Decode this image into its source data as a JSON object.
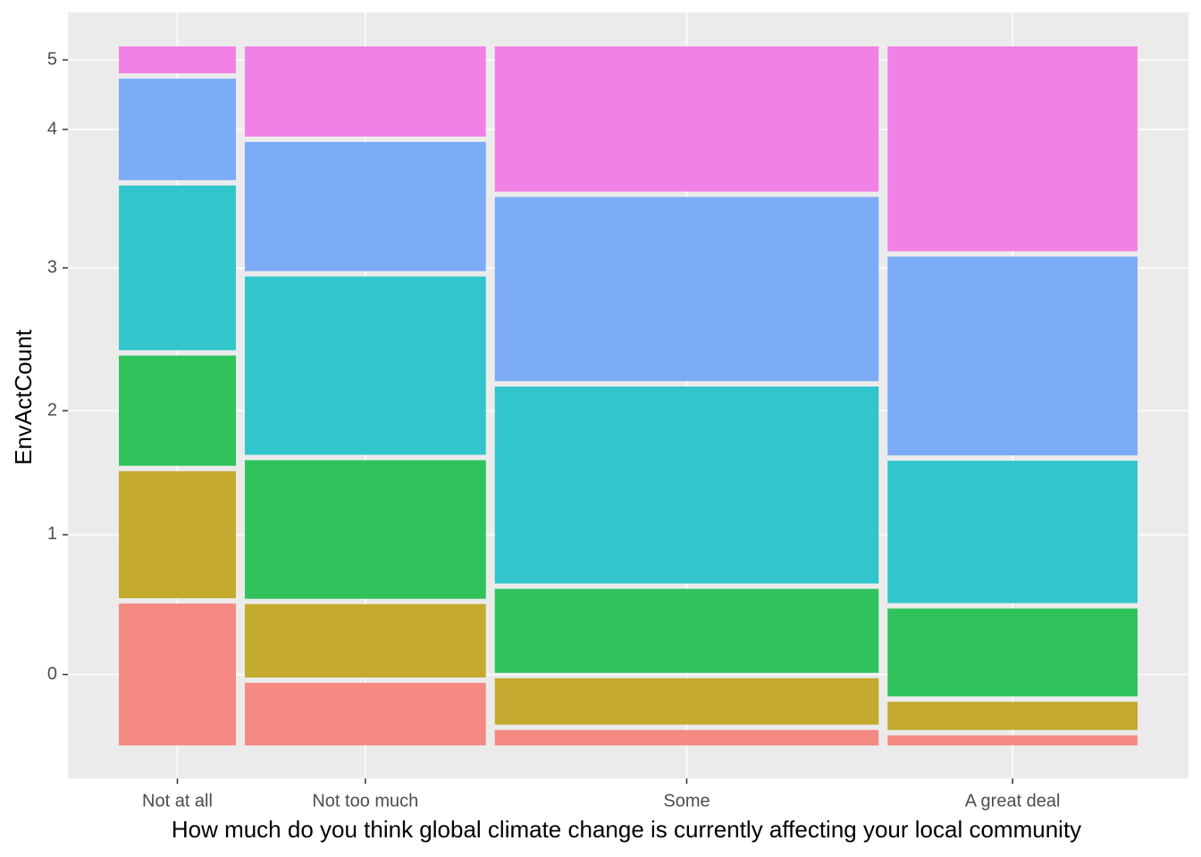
{
  "chart_data": {
    "type": "mosaic",
    "x_label": "How much do you think global climate change is currently affecting your local community",
    "y_label": "EnvActCount",
    "categories": [
      "Not at all",
      "Not too much",
      "Some",
      "A great deal"
    ],
    "widths": [
      0.118,
      0.243,
      0.387,
      0.252
    ],
    "series": [
      {
        "name": "0",
        "color": "#f58a83",
        "values": [
          0.211,
          0.093,
          0.023,
          0.015
        ]
      },
      {
        "name": "1",
        "color": "#c4aa2e",
        "values": [
          0.189,
          0.109,
          0.069,
          0.042
        ]
      },
      {
        "name": "2",
        "color": "#30c35c",
        "values": [
          0.164,
          0.206,
          0.125,
          0.131
        ]
      },
      {
        "name": "3",
        "color": "#32c6cc",
        "values": [
          0.245,
          0.265,
          0.293,
          0.212
        ]
      },
      {
        "name": "4",
        "color": "#7cabf8",
        "values": [
          0.151,
          0.192,
          0.274,
          0.296
        ]
      },
      {
        "name": "5",
        "color": "#f281e5",
        "values": [
          0.04,
          0.134,
          0.216,
          0.305
        ]
      }
    ],
    "grid": true
  }
}
